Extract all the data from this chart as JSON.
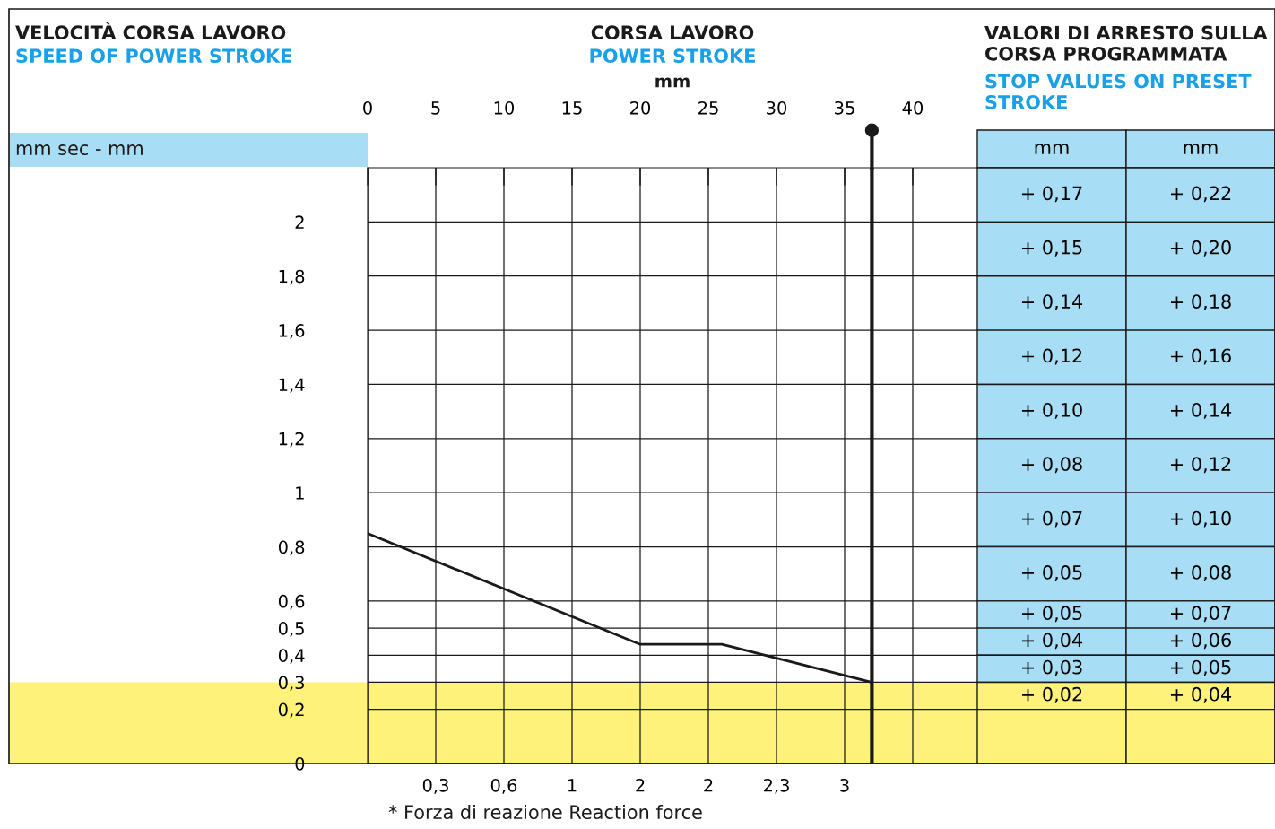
{
  "chart_data": [
    {
      "type": "line",
      "title": "CORSA LAVORO",
      "subtitle": "POWER STROKE",
      "xlabel": "mm",
      "ylabel": "mm sec - mm",
      "annotations": [
        "VELOCITÀ CORSA LAVORO",
        "SPEED OF POWER STROKE",
        "0,3",
        "0,6",
        "1",
        "2",
        "2",
        "2,3",
        "3",
        "* Forza di reazione Reaction force"
      ],
      "series": [
        {
          "color": "#1a1a1a",
          "x": [
            0,
            20,
            26,
            37
          ],
          "values": [
            0.85,
            0.44,
            0.44,
            0.3
          ]
        }
      ],
      "xlim": [
        0,
        45
      ],
      "ylim": [
        0,
        2.2
      ],
      "xticks": [
        0,
        5,
        10,
        15,
        20,
        25,
        30,
        35,
        40
      ],
      "yticks": [
        2,
        {
          "value": 1.8,
          "label": "1,8"
        },
        {
          "value": 1.6,
          "label": "1,6"
        },
        {
          "value": 1.4,
          "label": "1,4"
        },
        {
          "value": 1.2,
          "label": "1,2"
        },
        1,
        {
          "value": 0.8,
          "label": "0,8"
        },
        {
          "value": 0.6,
          "label": "0,6"
        },
        {
          "value": 0.5,
          "label": "0,5"
        },
        {
          "value": 0.4,
          "label": "0,4"
        },
        {
          "value": 0.3,
          "label": "0,3"
        },
        {
          "value": 0.2,
          "label": "0,2"
        },
        0
      ],
      "grid": true,
      "marker": "none",
      "line_style": "solid",
      "bands": [
        {
          "axis": "y",
          "from": 0,
          "to": 0.3,
          "color": "#fff27a"
        }
      ],
      "ref_lines": [
        {
          "axis": "x",
          "value": 37,
          "color": "#1a1a1a"
        }
      ]
    },
    {
      "type": "other",
      "title": "VALORI DI ARRESTO SULLA CORSA PROGRAMMATA",
      "subtitle": "STOP VALUES ON PRESET STROKE",
      "annotations": [
        "mm",
        "mm",
        "+ 0,17",
        "+ 0,22",
        "+ 0,15",
        "+ 0,20",
        "+ 0,14",
        "+ 0,18",
        "+ 0,12",
        "+ 0,16",
        "+ 0,10",
        "+ 0,14",
        "+ 0,08",
        "+ 0,12",
        "+ 0,07",
        "+ 0,10",
        "+ 0,05",
        "+ 0,08",
        "+ 0,05",
        "+ 0,07",
        "+ 0,04",
        "+ 0,06",
        "+ 0,03",
        "+ 0,05",
        "+ 0,02",
        "+ 0,04"
      ],
      "colors": [
        "#a8def5",
        "#a8def5",
        "#a8def5",
        "#a8def5",
        "#a8def5",
        "#a8def5",
        "#a8def5",
        "#a8def5",
        "#a8def5",
        "#a8def5",
        "#a8def5",
        "#a8def5",
        "#fff27a",
        "#fff27a"
      ]
    }
  ]
}
